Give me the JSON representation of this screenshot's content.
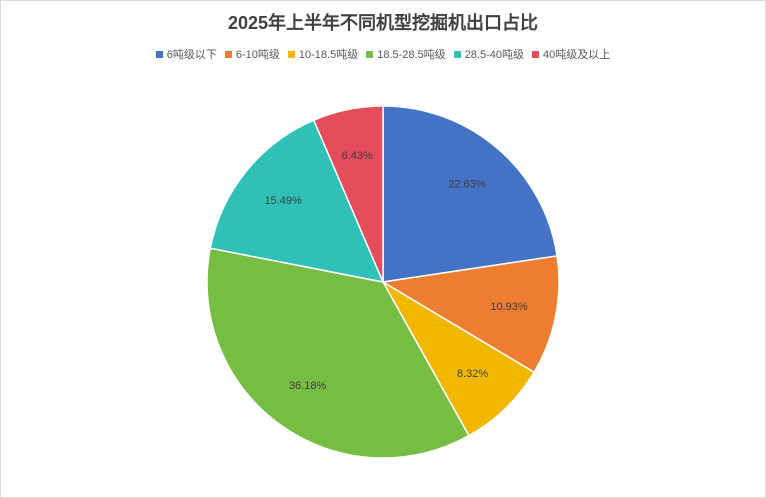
{
  "chart_data": {
    "type": "pie",
    "title": "2025年上半年不同机型挖掘机出口占比",
    "legend_position": "top",
    "categories": [
      "6吨级以下",
      "6-10吨级",
      "10-18.5吨级",
      "18.5-28.5吨级",
      "28.5-40吨级",
      "40吨级及以上"
    ],
    "values": [
      22.63,
      10.93,
      8.32,
      36.18,
      15.49,
      6.43
    ],
    "data_labels": [
      "22.63%",
      "10.93%",
      "8.32%",
      "36.18%",
      "15.49%",
      "6.43%"
    ],
    "colors": [
      "#4472c4",
      "#ed7d31",
      "#f2b800",
      "#76bd43",
      "#2fc1b7",
      "#e34d5b"
    ],
    "start_angle_deg": 0,
    "direction": "clockwise"
  }
}
